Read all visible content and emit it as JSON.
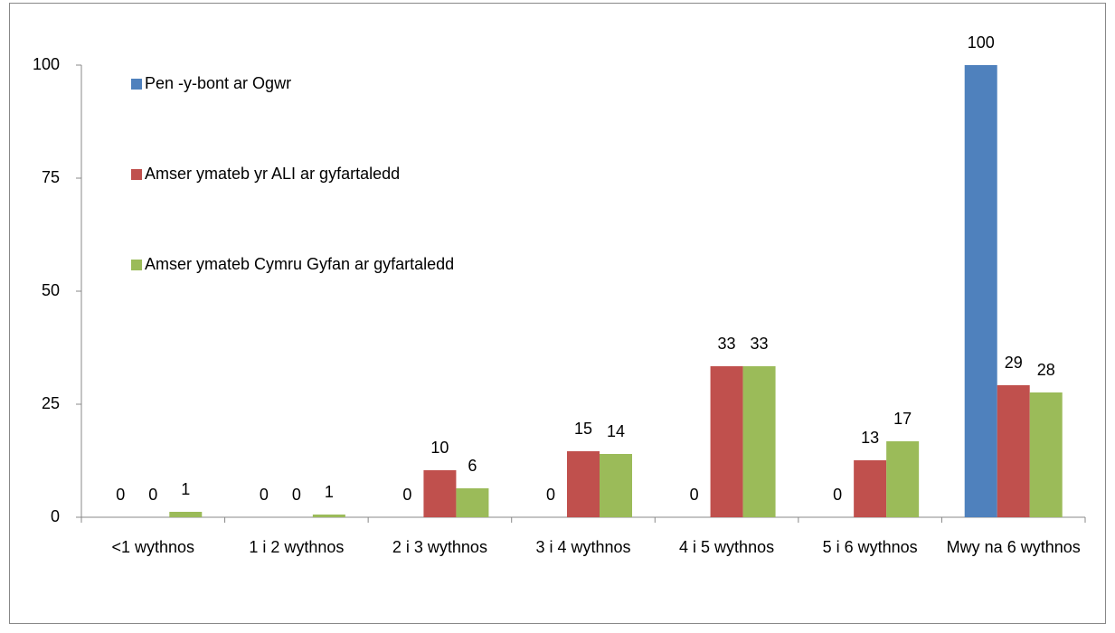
{
  "chart_data": {
    "type": "bar",
    "categories": [
      "<1 wythnos",
      "1 i 2 wythnos",
      "2 i 3 wythnos",
      "3 i 4 wythnos",
      "4 i 5 wythnos",
      "5 i 6 wythnos",
      "Mwy na 6 wythnos"
    ],
    "series": [
      {
        "name": "Pen -y-bont ar Ogwr",
        "color": "#4f81bd",
        "values": [
          0,
          0,
          0,
          0,
          0,
          0,
          100
        ],
        "value_labels": [
          "0",
          "0",
          "0",
          "0",
          "0",
          "0",
          "100"
        ]
      },
      {
        "name": "Amser ymateb yr ALI ar gyfartaledd",
        "color": "#c0504d",
        "values": [
          0,
          0,
          10.4,
          14.6,
          33.4,
          12.6,
          29.2
        ],
        "value_labels": [
          "0",
          "0",
          "10",
          "15",
          "33",
          "13",
          "29"
        ]
      },
      {
        "name": "Amser ymateb Cymru Gyfan ar gyfartaledd",
        "color": "#9bbb59",
        "values": [
          1.2,
          0.6,
          6.4,
          14,
          33.4,
          16.8,
          27.6
        ],
        "value_labels": [
          "1",
          "1",
          "6",
          "14",
          "33",
          "17",
          "28"
        ]
      }
    ],
    "ylim": [
      0,
      100
    ],
    "yticks": [
      0,
      25,
      50,
      75,
      100
    ],
    "grid": false,
    "legend": "upper left"
  }
}
